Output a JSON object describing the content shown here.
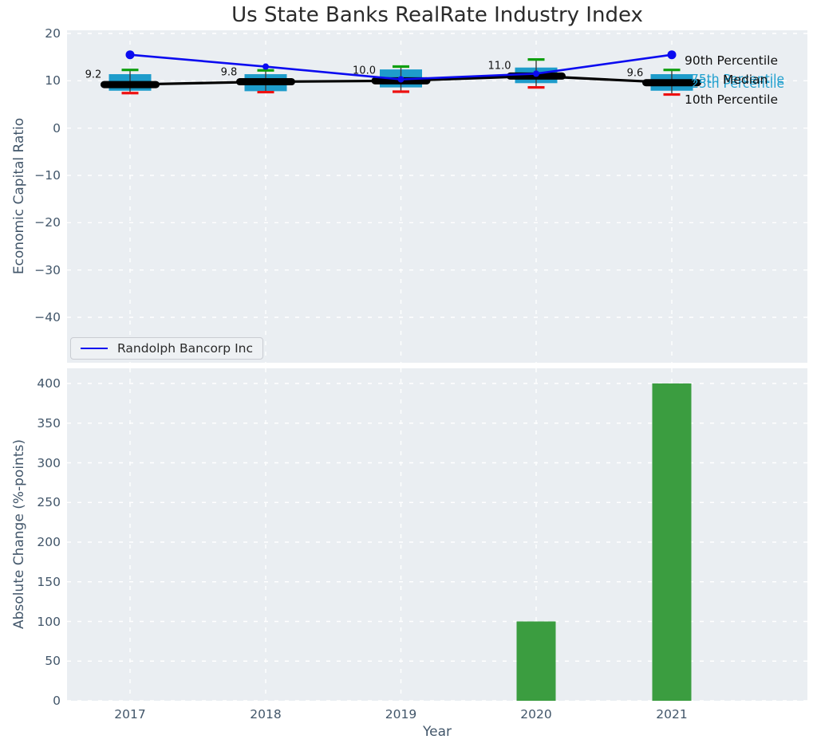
{
  "title": "Us State Banks RealRate Industry Index",
  "legend": {
    "label": "Randolph Bancorp Inc",
    "line_color": "#0b0bf0"
  },
  "x_axis": {
    "label": "Year",
    "tick_labels": [
      "2017",
      "2018",
      "2019",
      "2020",
      "2021"
    ]
  },
  "colors": {
    "plot_bg": "#eaeef2",
    "grid": "#ffffff",
    "tick_label": "#42566a",
    "title_text": "#2b2b2b",
    "box_fill": "#1e9ccb",
    "percentile_text": "#1f9fce",
    "p90_cap": "#0f9f0f",
    "p10_cap": "#ee1010",
    "whisker_stem": "#3a3a3a",
    "median_line": "#000000",
    "company_line": "#0b0bf0",
    "bar_fill": "#3b9d40",
    "annotation_text": "#111111"
  },
  "chart_data": [
    {
      "type": "boxplot+line",
      "title": "Us State Banks RealRate Industry Index",
      "ylabel": "Economic Capital Ratio",
      "xlabel": "Year",
      "categories": [
        "2017",
        "2018",
        "2019",
        "2020",
        "2021"
      ],
      "yticks": [
        20,
        10,
        0,
        -10,
        -20,
        -30,
        -40
      ],
      "ytick_labels": [
        "20",
        "10",
        "0",
        "−10",
        "−20",
        "−30",
        "−40"
      ],
      "ylim": [
        -49.6,
        20.7
      ],
      "grid": true,
      "legend_position": "lower left",
      "series": [
        {
          "name": "Median",
          "role": "median",
          "values": [
            9.2,
            9.8,
            10.0,
            11.0,
            9.6
          ]
        },
        {
          "name": "Randolph Bancorp Inc",
          "role": "company",
          "values": [
            15.5,
            13.0,
            10.3,
            11.5,
            15.5
          ]
        },
        {
          "name": "90th Percentile",
          "role": "p90",
          "values": [
            12.3,
            12.2,
            13.0,
            14.5,
            12.3
          ]
        },
        {
          "name": "75th Percentile",
          "role": "p75",
          "values": [
            11.4,
            11.4,
            12.4,
            12.8,
            11.4
          ]
        },
        {
          "name": "25th Percentile",
          "role": "p25",
          "values": [
            7.9,
            7.8,
            8.6,
            9.5,
            7.9
          ]
        },
        {
          "name": "10th Percentile",
          "role": "p10",
          "values": [
            7.4,
            7.6,
            7.7,
            8.6,
            7.1
          ]
        }
      ],
      "median_annotations": [
        "9.2",
        "9.8",
        "10.0",
        "11.0",
        "9.6"
      ],
      "percentile_labels": {
        "p90": "90th Percentile",
        "p75": "75th Percentile",
        "median": "Median",
        "p25": "25th Percentile",
        "p10": "10th Percentile"
      }
    },
    {
      "type": "bar",
      "ylabel": "Absolute Change (%-points)",
      "xlabel": "Year",
      "categories": [
        "2017",
        "2018",
        "2019",
        "2020",
        "2021"
      ],
      "values": [
        0,
        0,
        0,
        100,
        400
      ],
      "yticks": [
        0,
        50,
        100,
        150,
        200,
        250,
        300,
        350,
        400
      ],
      "ytick_labels": [
        "0",
        "50",
        "100",
        "150",
        "200",
        "250",
        "300",
        "350",
        "400"
      ],
      "ylim": [
        0,
        418
      ],
      "grid": true
    }
  ]
}
